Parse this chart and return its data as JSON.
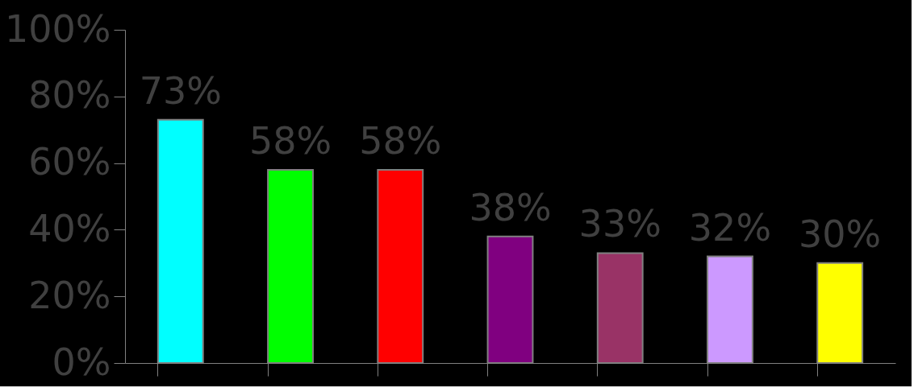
{
  "chart_data": {
    "type": "bar",
    "categories": [
      null,
      null,
      null,
      null,
      null,
      null,
      null
    ],
    "values": [
      73,
      58,
      58,
      38,
      33,
      32,
      30
    ],
    "colors": [
      "#00ffff",
      "#00ff00",
      "#ff0000",
      "#800080",
      "#993366",
      "#cc99ff",
      "#ffff00"
    ],
    "value_labels": [
      "73%",
      "58%",
      "58%",
      "38%",
      "33%",
      "32%",
      "30%"
    ],
    "ylim": [
      0,
      100
    ],
    "yticks": [
      {
        "value": 0,
        "label": "0%"
      },
      {
        "value": 20,
        "label": "20%"
      },
      {
        "value": 40,
        "label": "40%"
      },
      {
        "value": 60,
        "label": "60%"
      },
      {
        "value": 80,
        "label": "80%"
      },
      {
        "value": 100,
        "label": "100%"
      }
    ],
    "grid": false,
    "tick_labels": "y"
  }
}
